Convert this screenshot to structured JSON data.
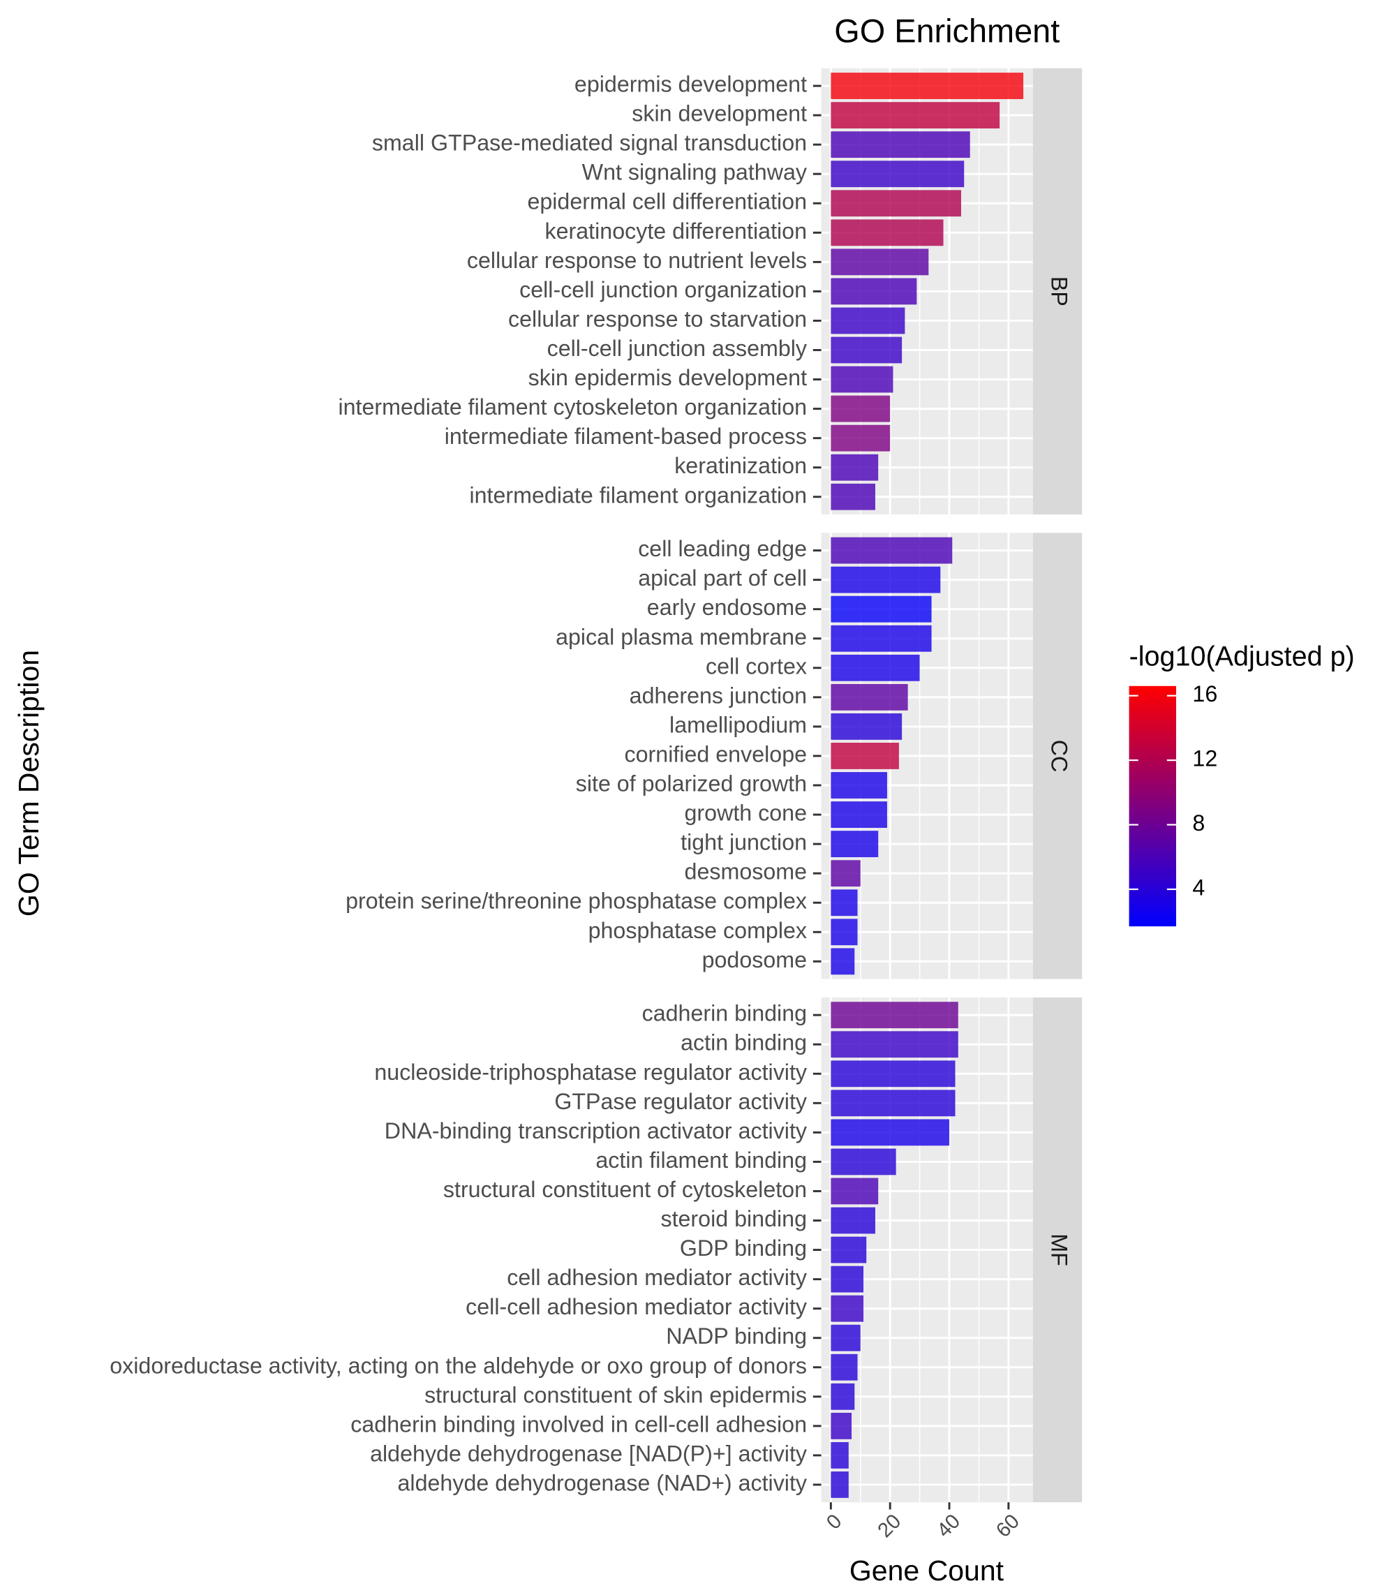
{
  "chart_data": {
    "type": "bar",
    "orientation": "horizontal",
    "title": "GO Enrichment",
    "x_label": "Gene Count",
    "y_label": "GO Term Description",
    "xlim": [
      -3.25,
      68.25
    ],
    "xticks": [
      0,
      20,
      40,
      60
    ],
    "grid": true,
    "color_scale": {
      "title": "-log10(Adjusted p)",
      "low": "#0000ff",
      "high": "#ff0000",
      "lim": [
        1.7,
        16.6
      ],
      "ticks": [
        4,
        8,
        12,
        16
      ]
    },
    "facets": [
      {
        "name": "BP",
        "categories": [
          "epidermis development",
          "skin development",
          "small GTPase-mediated signal transduction",
          "Wnt signaling pathway",
          "epidermal cell differentiation",
          "keratinocyte differentiation",
          "cellular response to nutrient levels",
          "cell-cell junction organization",
          "cellular response to starvation",
          "cell-cell junction assembly",
          "skin epidermis development",
          "intermediate filament cytoskeleton organization",
          "intermediate filament-based process",
          "keratinization",
          "intermediate filament organization"
        ],
        "values": [
          65,
          57,
          47,
          45,
          44,
          38,
          33,
          29,
          25,
          24,
          21,
          20,
          20,
          16,
          15
        ],
        "color_values": [
          16,
          13,
          6,
          5,
          12,
          12,
          7,
          6,
          5,
          5,
          6,
          9,
          9,
          6,
          6
        ]
      },
      {
        "name": "CC",
        "categories": [
          "cell leading edge",
          "apical part of cell",
          "early endosome",
          "apical plasma membrane",
          "cell cortex",
          "adherens junction",
          "lamellipodium",
          "cornified envelope",
          "site of polarized growth",
          "growth cone",
          "tight junction",
          "desmosome",
          "protein serine/threonine phosphatase complex",
          "phosphatase complex",
          "podosome"
        ],
        "values": [
          41,
          37,
          34,
          34,
          30,
          26,
          24,
          23,
          19,
          19,
          16,
          10,
          9,
          9,
          8
        ],
        "color_values": [
          6,
          3,
          2,
          3,
          3,
          7,
          4,
          13,
          3,
          3,
          3,
          7,
          3,
          3,
          3
        ]
      },
      {
        "name": "MF",
        "categories": [
          "cadherin binding",
          "actin binding",
          "nucleoside-triphosphatase regulator activity",
          "GTPase regulator activity",
          "DNA-binding transcription activator activity",
          "actin filament binding",
          "structural constituent of cytoskeleton",
          "steroid binding",
          "GDP binding",
          "cell adhesion mediator activity",
          "cell-cell adhesion mediator activity",
          "NADP binding",
          "oxidoreductase activity, acting on the aldehyde or oxo group of donors",
          "structural constituent of skin epidermis",
          "cadherin binding involved in cell-cell adhesion",
          "aldehyde dehydrogenase [NAD(P)+] activity",
          "aldehyde dehydrogenase (NAD+) activity"
        ],
        "values": [
          43,
          43,
          42,
          42,
          40,
          22,
          16,
          15,
          12,
          11,
          11,
          10,
          9,
          8,
          7,
          6,
          6
        ],
        "color_values": [
          8,
          5,
          4,
          4,
          3,
          4,
          6,
          4,
          4,
          4,
          5,
          4,
          4,
          4,
          5,
          4,
          4
        ]
      }
    ]
  }
}
